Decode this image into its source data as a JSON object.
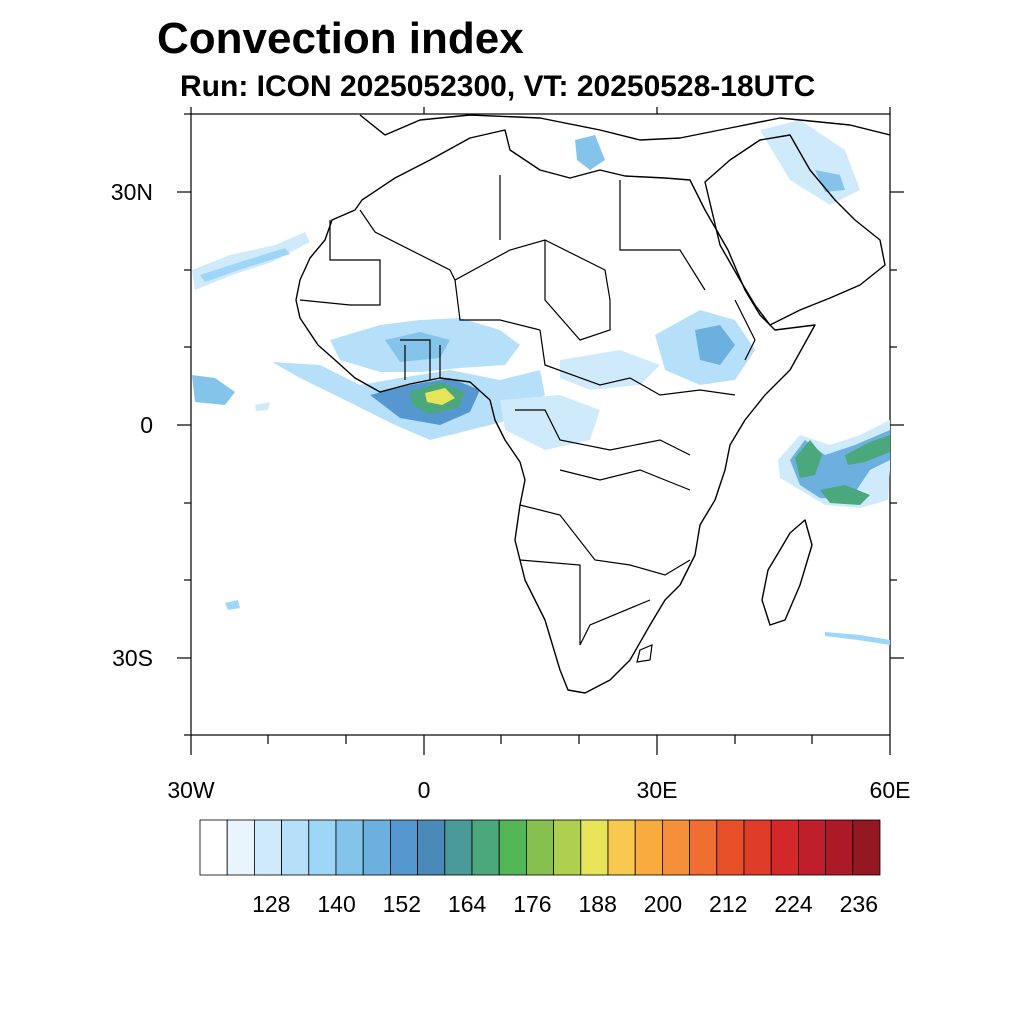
{
  "title": "Convection index",
  "subtitle": "Run: ICON 2025052300,  VT: 20250528-18UTC",
  "map": {
    "extent": {
      "lon": [
        -30,
        60
      ],
      "lat": [
        -40,
        40
      ]
    },
    "x_ticks": [
      "30W",
      "0",
      "30E",
      "60E"
    ],
    "y_ticks": [
      "30N",
      "0",
      "30S"
    ]
  },
  "colorbar": {
    "colors": [
      "#ffffff",
      "#e8f5fd",
      "#cfeafb",
      "#b6e0f9",
      "#9ed6f7",
      "#85c4ea",
      "#6cb0e0",
      "#5598cf",
      "#4a8ab8",
      "#4a9a9a",
      "#4aa87c",
      "#52b656",
      "#86c04e",
      "#aed04e",
      "#e8e45a",
      "#f8c850",
      "#f8ac40",
      "#f58f3a",
      "#f06e30",
      "#e8502a",
      "#e03c2a",
      "#d2282a",
      "#c01e2a",
      "#ac1a28",
      "#941822"
    ],
    "labels": [
      "128",
      "140",
      "152",
      "164",
      "176",
      "188",
      "200",
      "212",
      "224",
      "236"
    ]
  }
}
